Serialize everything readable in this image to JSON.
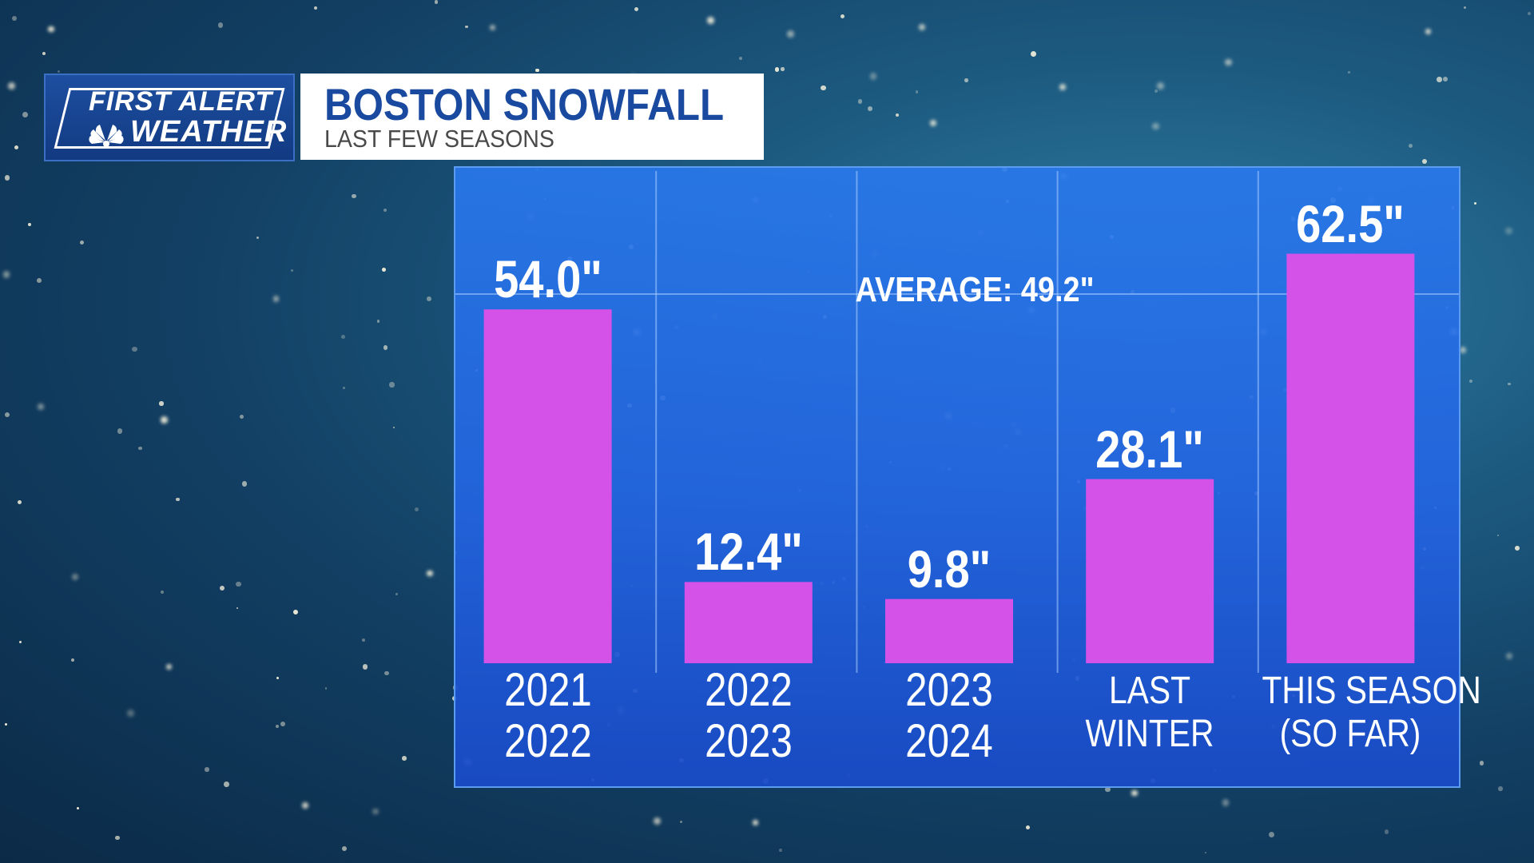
{
  "header": {
    "logo_line1": "FIRST ALERT",
    "logo_line2": "WEATHER",
    "title": "BOSTON SNOWFALL",
    "subtitle": "LAST FEW SEASONS"
  },
  "colors": {
    "bar": "#d452e8",
    "title": "#1a4aa0",
    "panel": "#2a78e8"
  },
  "chart_data": {
    "type": "bar",
    "title": "BOSTON SNOWFALL",
    "subtitle": "LAST FEW SEASONS",
    "categories": [
      [
        "2021",
        "2022"
      ],
      [
        "2022",
        "2023"
      ],
      [
        "2023",
        "2024"
      ],
      [
        "LAST",
        "WINTER"
      ],
      [
        "THIS SEASON",
        "(SO FAR)"
      ]
    ],
    "values": [
      54.0,
      12.4,
      9.8,
      28.1,
      62.5
    ],
    "value_labels": [
      "54.0\"",
      "12.4\"",
      "9.8\"",
      "28.1\"",
      "62.5\""
    ],
    "units": "inches",
    "reference_line": {
      "label": "AVERAGE: 49.2\"",
      "value": 49.2
    },
    "ylim": [
      0,
      65
    ],
    "xlabel": "",
    "ylabel": "",
    "grid": true,
    "legend": "none"
  }
}
